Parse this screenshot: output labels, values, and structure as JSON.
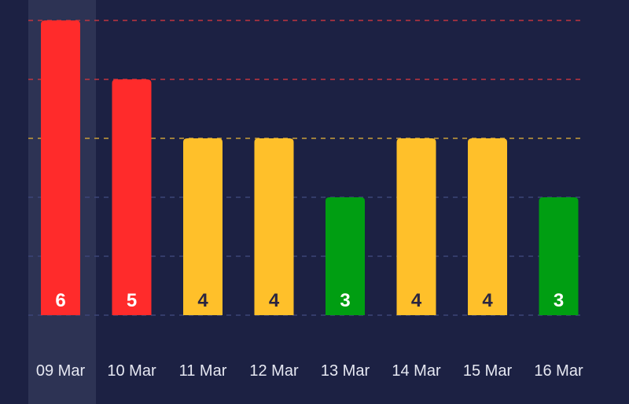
{
  "chart_data": {
    "type": "bar",
    "categories": [
      "09 Mar",
      "10 Mar",
      "11 Mar",
      "12 Mar",
      "13 Mar",
      "14 Mar",
      "15 Mar",
      "16 Mar"
    ],
    "values": [
      6,
      5,
      4,
      4,
      3,
      4,
      4,
      3
    ],
    "ylim": [
      1,
      6
    ],
    "grid": true,
    "gridlines": [
      {
        "value": 6,
        "color": "#c0363f"
      },
      {
        "value": 5,
        "color": "#c0363f"
      },
      {
        "value": 4,
        "color": "#c9a03a"
      },
      {
        "value": 3,
        "color": "#3d4578"
      },
      {
        "value": 2,
        "color": "#3d4578"
      },
      {
        "value": 1,
        "color": "#3d4578"
      }
    ],
    "bar_colors": [
      "#ff2b2b",
      "#ff2b2b",
      "#ffc02a",
      "#ffc02a",
      "#009e12",
      "#ffc02a",
      "#ffc02a",
      "#009e12"
    ],
    "label_colors": [
      "#ffffff",
      "#ffffff",
      "#2a2540",
      "#2a2540",
      "#ffffff",
      "#2a2540",
      "#2a2540",
      "#ffffff"
    ],
    "highlighted_category": "09 Mar"
  },
  "theme": {
    "background": "#1c2143",
    "highlight": "#2d3354"
  }
}
